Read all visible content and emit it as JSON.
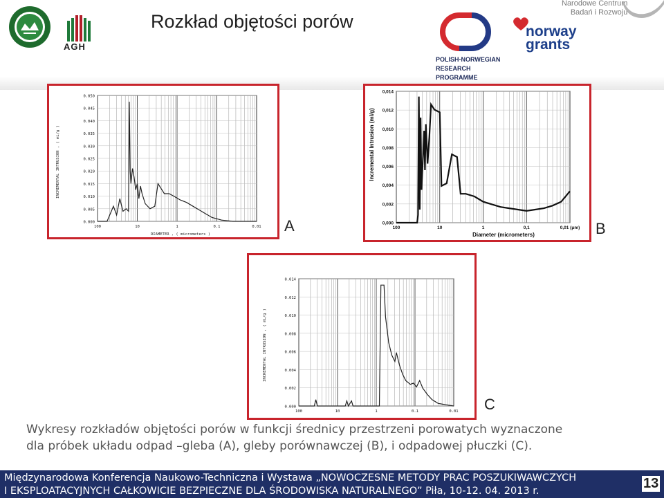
{
  "header": {
    "title": "Rozkład objętości porów",
    "agh_label": "AGH",
    "pnrp_lines": [
      "POLISH-NORWEGIAN",
      "RESEARCH",
      "PROGRAMME"
    ],
    "norway_lines": [
      "norway",
      "grants"
    ],
    "ncbr_lines": [
      "Narodowe Centrum",
      "Badań i Rozwoju"
    ]
  },
  "panels": {
    "a": {
      "label": "A",
      "ylabel": "INCREMENTAL INTRUSION , ( mL/g )",
      "xlabel": "DIAMETER , ( micrometers )",
      "yticks": [
        "0.000",
        "0.005",
        "0.010",
        "0.015",
        "0.020",
        "0.025",
        "0.030",
        "0.035",
        "0.040",
        "0.045",
        "0.050"
      ],
      "xticks": [
        "100",
        "10",
        "1",
        "0.1",
        "0.01"
      ]
    },
    "b": {
      "label": "B",
      "ylabel": "Incremental Intrusion (ml/g)",
      "xlabel": "Diameter (micrometers)",
      "yticks": [
        "0,000",
        "0,002",
        "0,004",
        "0,006",
        "0,008",
        "0,010",
        "0,012",
        "0,014"
      ],
      "xticks": [
        "100",
        "10",
        "1",
        "0,1",
        "0,01 (μm)"
      ]
    },
    "c": {
      "label": "C",
      "ylabel": "INCREMENTAL INTRUSION , ( mL/g )",
      "yticks": [
        "0.000",
        "0.002",
        "0.004",
        "0.006",
        "0.008",
        "0.010",
        "0.012",
        "0.014"
      ],
      "xticks": [
        "100",
        "10",
        "1",
        "0.1",
        "0.01"
      ]
    }
  },
  "caption": {
    "line1": "Wykresy rozkładów objętości porów w funkcji średnicy przestrzeni porowatych wyznaczone",
    "line2": "dla próbek układu odpad –gleba (A), gleby porównawczej (B),  i odpadowej płuczki (C)."
  },
  "footer": {
    "line1": "Międzynarodowa Konferencja Naukowo-Techniczna i Wystawa „NOWOCZESNE METODY PRAC POSZUKIWAWCZYCH",
    "line2": "I EKSPLOATACYJNYCH CAŁKOWICIE BEZPIECZNE DLA ŚRODOWISKA NATURALNEGO” Piła, 10-12. 04. 2013 r.",
    "page_number": "13"
  },
  "colors": {
    "frame": "#c8242c",
    "footer_bg": "#1f2f66",
    "pnrp_red": "#d42a2f",
    "pnrp_blue": "#233a86"
  }
}
